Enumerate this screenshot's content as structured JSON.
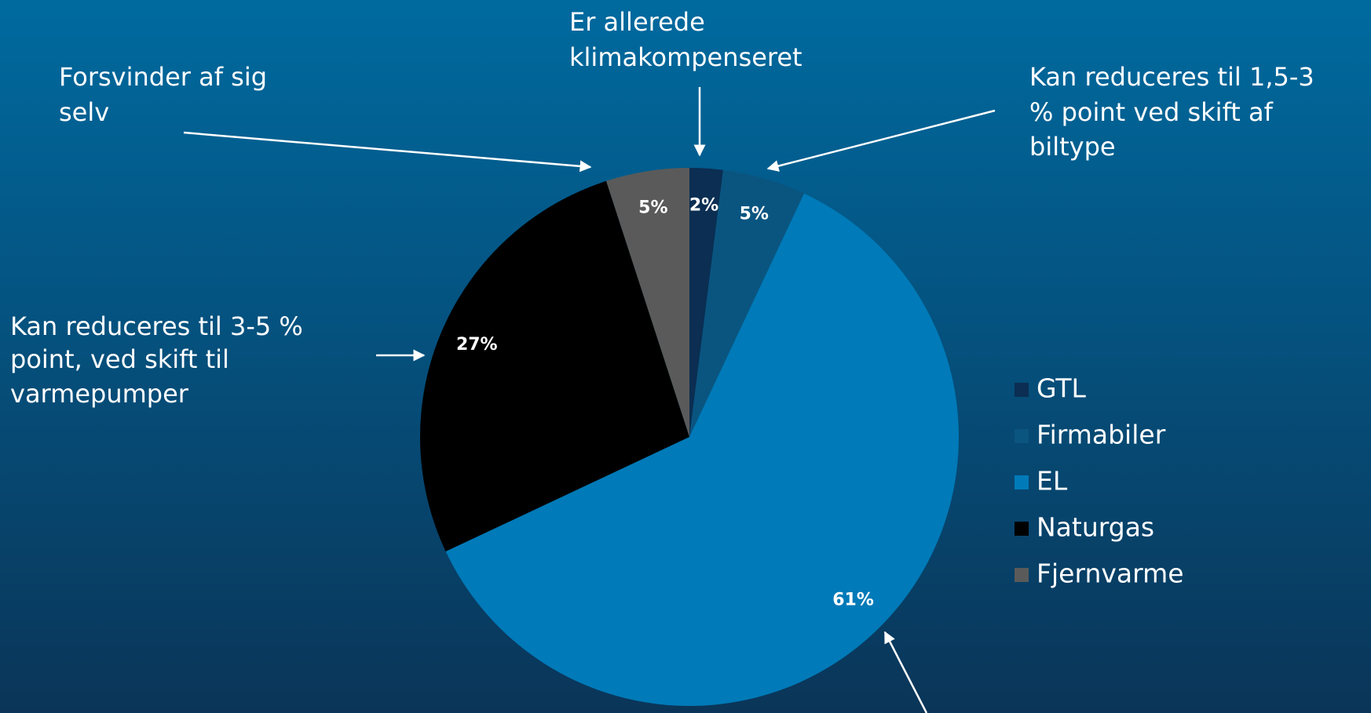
{
  "chart_data": {
    "type": "pie",
    "categories": [
      "GTL",
      "Firmabiler",
      "EL",
      "Naturgas",
      "Fjernvarme"
    ],
    "values": [
      2,
      5,
      61,
      27,
      5
    ],
    "value_labels": [
      "2%",
      "5%",
      "61%",
      "27%",
      "5%"
    ],
    "colors": [
      "#0b2e52",
      "#0a5580",
      "#007ab8",
      "#000000",
      "#5a5a5a"
    ],
    "legend": "right",
    "annotations": [
      [
        "Forsvinder af sig",
        "selv"
      ],
      [
        "Er allerede",
        "klimakompenseret"
      ],
      [
        "Kan reduceres til 1,5-3",
        "% point ved skift af",
        "biltype"
      ],
      [
        "Kan reduceres til 3-5 %",
        "point, ved skift til",
        "varmepumper"
      ]
    ]
  }
}
